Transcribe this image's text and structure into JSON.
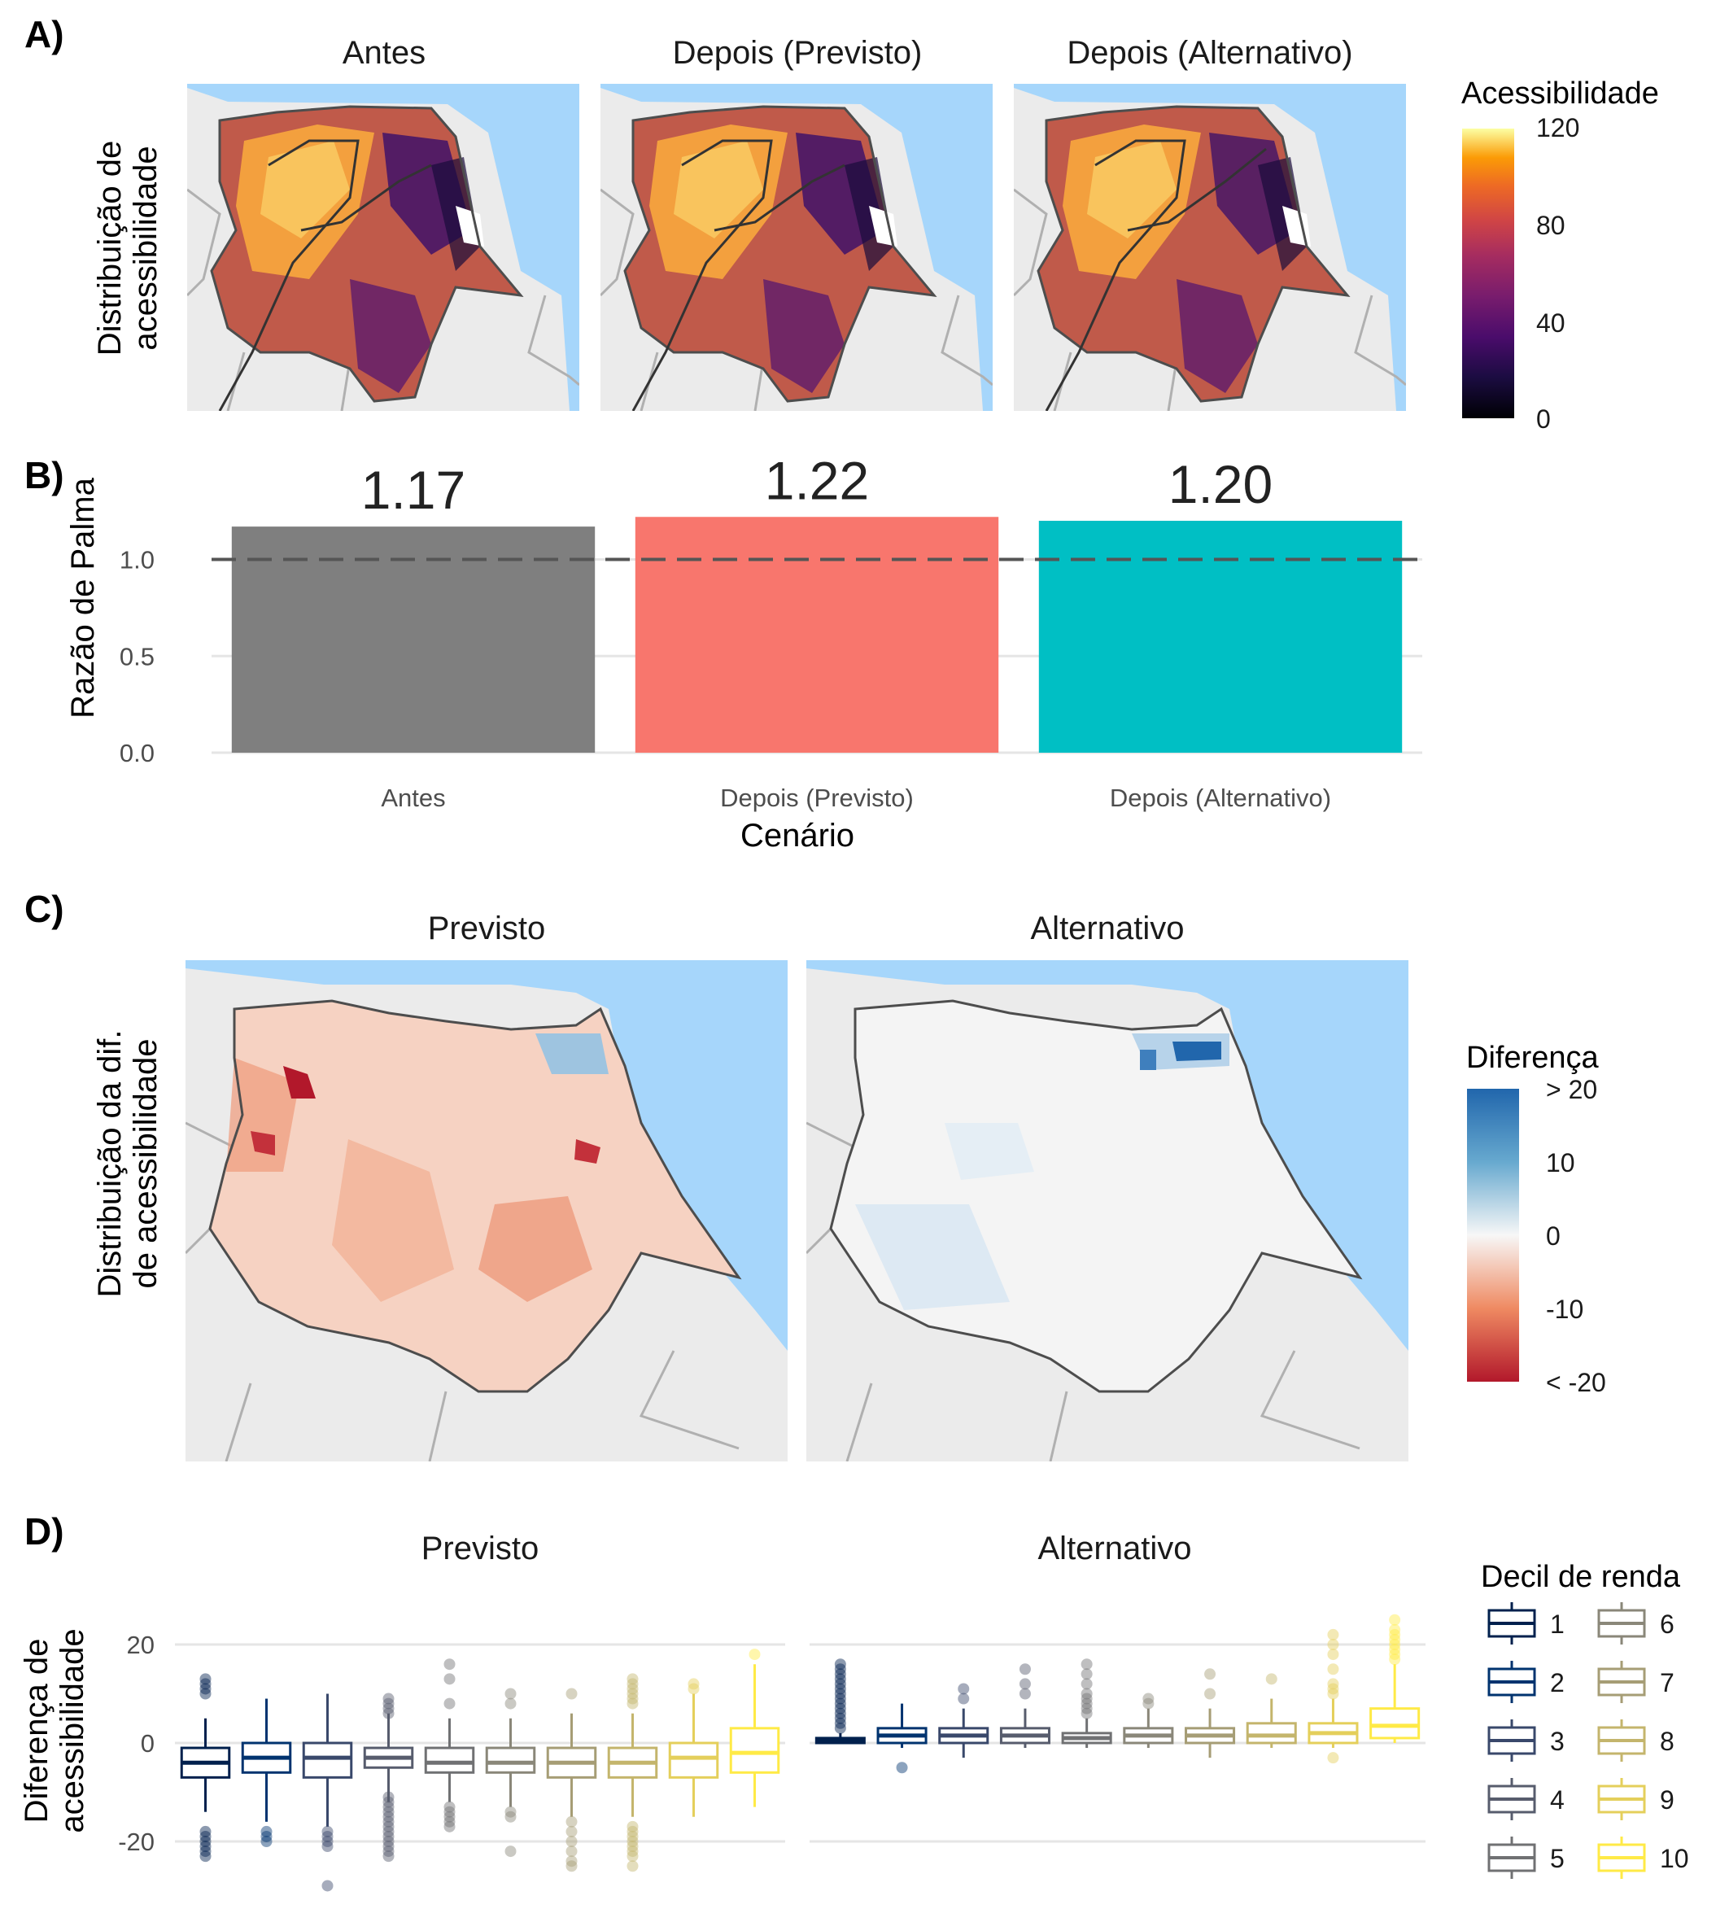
{
  "chart_data": [
    {
      "panel": "A)",
      "type": "heatmap",
      "ylabel": [
        "Distribuição de",
        "acessibilidade"
      ],
      "facets": [
        "Antes",
        "Depois (Previsto)",
        "Depois (Alternativo)"
      ],
      "legend": {
        "title": "Acessibilidade",
        "ticks": [
          "120",
          "80",
          "40",
          "0"
        ],
        "range": [
          0,
          120
        ],
        "palette": "inferno"
      },
      "colors": {
        "sea": "#a6d6fb",
        "land": "#ebebeb"
      }
    },
    {
      "panel": "B)",
      "type": "bar",
      "categories": [
        "Antes",
        "Depois (Previsto)",
        "Depois (Alternativo)"
      ],
      "values": [
        1.17,
        1.22,
        1.2
      ],
      "value_labels": [
        "1.17",
        "1.22",
        "1.20"
      ],
      "colors": [
        "#7f7f7f",
        "#f8766d",
        "#00bfc4"
      ],
      "xlabel": "Cenário",
      "ylabel": "Razão de Palma",
      "ylim": [
        0,
        1.3
      ],
      "yticks": [
        "0.0",
        "0.5",
        "1.0"
      ],
      "reference_line": 1.0
    },
    {
      "panel": "C)",
      "type": "heatmap",
      "ylabel": [
        "Distribuição da dif.",
        "de acessibilidade"
      ],
      "facets": [
        "Previsto",
        "Alternativo"
      ],
      "legend": {
        "title": "Diferença",
        "ticks": [
          "> 20",
          "10",
          "0",
          "-10",
          "< -20"
        ],
        "range": [
          -20,
          20
        ],
        "palette": "RdBu"
      }
    },
    {
      "panel": "D)",
      "type": "box",
      "ylabel": [
        "Diferença de",
        "acessibilidade"
      ],
      "facets": [
        "Previsto",
        "Alternativo"
      ],
      "ylim": [
        -30,
        26
      ],
      "yticks": [
        "20",
        "0",
        "-20"
      ],
      "legend": {
        "title": "Decil de renda",
        "labels": [
          "1",
          "2",
          "3",
          "4",
          "5",
          "6",
          "7",
          "8",
          "9",
          "10"
        ]
      },
      "deciles": [
        1,
        2,
        3,
        4,
        5,
        6,
        7,
        8,
        9,
        10
      ],
      "colors": [
        "#00204d",
        "#00336f",
        "#39486b",
        "#575c6d",
        "#707173",
        "#8a8779",
        "#a69d75",
        "#c4b56c",
        "#e4cf5b",
        "#ffea46"
      ],
      "series": [
        {
          "name": "Previsto",
          "boxes": [
            {
              "lo": -14,
              "q1": -7,
              "med": -4,
              "q3": -1,
              "hi": 5,
              "out": [
                13,
                12,
                11,
                10,
                -18,
                -19,
                -20,
                -21,
                -22,
                -23
              ]
            },
            {
              "lo": -16,
              "q1": -6,
              "med": -3,
              "q3": 0,
              "hi": 9,
              "out": [
                -18,
                -19,
                -20
              ]
            },
            {
              "lo": -17,
              "q1": -7,
              "med": -3,
              "q3": 0,
              "hi": 10,
              "out": [
                -18,
                -19,
                -20,
                -21,
                -29
              ]
            },
            {
              "lo": -12,
              "q1": -5,
              "med": -3,
              "q3": -1,
              "hi": 6,
              "out": [
                9,
                8,
                7,
                6,
                -11,
                -12,
                -13,
                -14,
                -15,
                -16,
                -17,
                -18,
                -19,
                -20,
                -21,
                -22,
                -23
              ]
            },
            {
              "lo": -12,
              "q1": -6,
              "med": -4,
              "q3": -1,
              "hi": 5,
              "out": [
                16,
                13,
                8,
                -13,
                -14,
                -15,
                -16,
                -17
              ]
            },
            {
              "lo": -13,
              "q1": -6,
              "med": -4,
              "q3": -1,
              "hi": 5,
              "out": [
                10,
                8,
                -14,
                -15,
                -22
              ]
            },
            {
              "lo": -15,
              "q1": -7,
              "med": -4,
              "q3": -1,
              "hi": 6,
              "out": [
                10,
                -16,
                -18,
                -20,
                -22,
                -24,
                -25
              ]
            },
            {
              "lo": -15,
              "q1": -7,
              "med": -4,
              "q3": -1,
              "hi": 6,
              "out": [
                13,
                12,
                11,
                10,
                9,
                8,
                -17,
                -18,
                -19,
                -20,
                -21,
                -22,
                -23,
                -25
              ]
            },
            {
              "lo": -15,
              "q1": -7,
              "med": -3,
              "q3": 0,
              "hi": 10,
              "out": [
                12,
                11
              ]
            },
            {
              "lo": -13,
              "q1": -6,
              "med": -2,
              "q3": 3,
              "hi": 16,
              "out": [
                18
              ]
            }
          ]
        },
        {
          "name": "Alternativo",
          "boxes": [
            {
              "lo": 0,
              "q1": 0,
              "med": 0.5,
              "q3": 1,
              "hi": 2,
              "out": [
                16,
                15,
                14,
                13,
                12,
                11,
                10,
                9,
                8,
                7,
                6,
                5,
                4,
                3
              ]
            },
            {
              "lo": -1,
              "q1": 0,
              "med": 1.5,
              "q3": 3,
              "hi": 8,
              "out": [
                -5
              ]
            },
            {
              "lo": -3,
              "q1": 0,
              "med": 1.5,
              "q3": 3,
              "hi": 7,
              "out": [
                11,
                9
              ]
            },
            {
              "lo": -1,
              "q1": 0,
              "med": 1.5,
              "q3": 3,
              "hi": 7,
              "out": [
                15,
                12,
                10
              ]
            },
            {
              "lo": -1,
              "q1": 0,
              "med": 1,
              "q3": 2,
              "hi": 5,
              "out": [
                16,
                14,
                12,
                10,
                9,
                8,
                7,
                6
              ]
            },
            {
              "lo": -1,
              "q1": 0,
              "med": 1.5,
              "q3": 3,
              "hi": 7,
              "out": [
                9,
                8
              ]
            },
            {
              "lo": -3,
              "q1": 0,
              "med": 1.5,
              "q3": 3,
              "hi": 7,
              "out": [
                14,
                10
              ]
            },
            {
              "lo": -1,
              "q1": 0,
              "med": 1.5,
              "q3": 4,
              "hi": 9,
              "out": [
                13
              ]
            },
            {
              "lo": -1,
              "q1": 0,
              "med": 2,
              "q3": 4,
              "hi": 9,
              "out": [
                22,
                20,
                18,
                15,
                12,
                11,
                10,
                -3
              ]
            },
            {
              "lo": 0,
              "q1": 1,
              "med": 3.5,
              "q3": 7,
              "hi": 16,
              "out": [
                25,
                23,
                22,
                21,
                20,
                19,
                18,
                17
              ]
            }
          ]
        }
      ]
    }
  ]
}
